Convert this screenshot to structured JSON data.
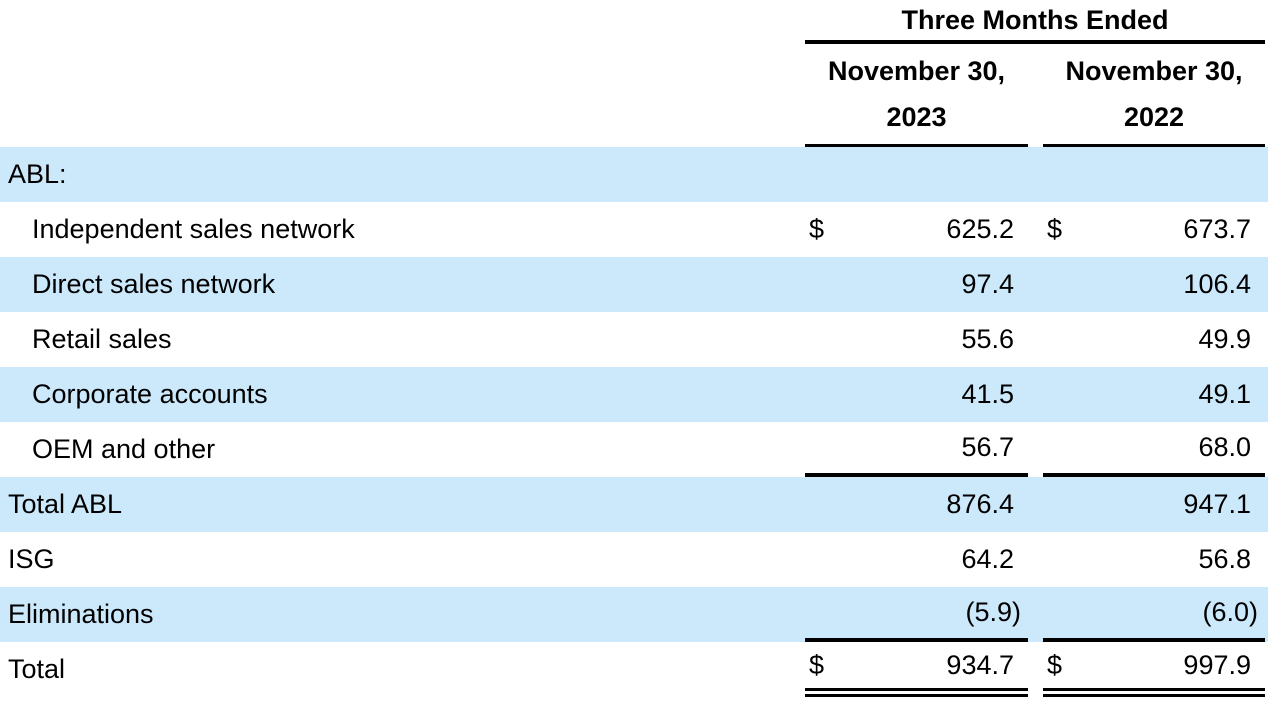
{
  "table": {
    "period_header": "Three Months Ended",
    "columns": [
      {
        "month_line": "November 30,",
        "year_line": "2023"
      },
      {
        "month_line": "November 30,",
        "year_line": "2022"
      }
    ],
    "rows": [
      {
        "label": "ABL:",
        "dollar": "",
        "values": [
          "",
          ""
        ]
      },
      {
        "label": "Independent sales network",
        "dollar": "$",
        "values": [
          "625.2",
          "673.7"
        ]
      },
      {
        "label": "Direct sales network",
        "dollar": "",
        "values": [
          "97.4",
          "106.4"
        ]
      },
      {
        "label": "Retail sales",
        "dollar": "",
        "values": [
          "55.6",
          "49.9"
        ]
      },
      {
        "label": "Corporate accounts",
        "dollar": "",
        "values": [
          "41.5",
          "49.1"
        ]
      },
      {
        "label": "OEM and other",
        "dollar": "",
        "values": [
          "56.7",
          "68.0"
        ]
      },
      {
        "label": "Total ABL",
        "dollar": "",
        "values": [
          "876.4",
          "947.1"
        ]
      },
      {
        "label": "ISG",
        "dollar": "",
        "values": [
          "64.2",
          "56.8"
        ]
      },
      {
        "label": "Eliminations",
        "dollar": "",
        "values": [
          "(5.9)",
          "(6.0)"
        ]
      },
      {
        "label": "Total",
        "dollar": "$",
        "values": [
          "934.7",
          "997.9"
        ]
      }
    ],
    "colors": {
      "row_highlight": "#cce9fc",
      "rule": "#000000"
    }
  }
}
